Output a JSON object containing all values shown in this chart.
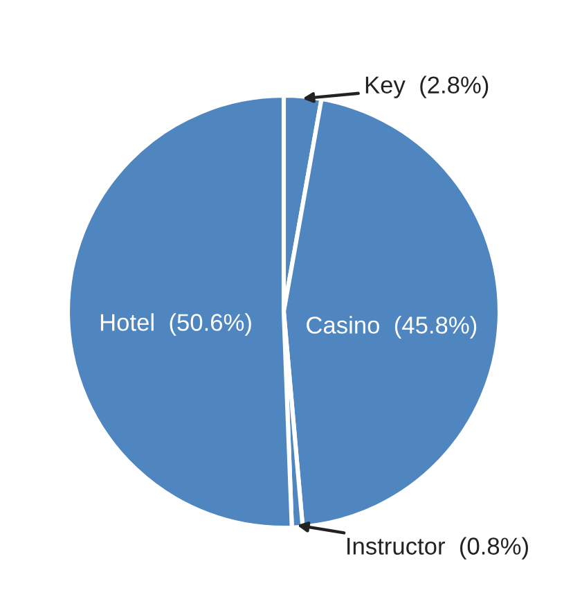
{
  "chart_data": {
    "type": "pie",
    "categories": [
      "Key",
      "Casino",
      "Instructor",
      "Hotel"
    ],
    "values": [
      2.8,
      45.8,
      0.8,
      50.6
    ],
    "value_labels": [
      "(2.8%)",
      "(45.8%)",
      "(0.8%)",
      "(50.6%)"
    ],
    "colors": [
      "#4f86c0",
      "#4f86c0",
      "#4f86c0",
      "#4f86c0"
    ]
  }
}
